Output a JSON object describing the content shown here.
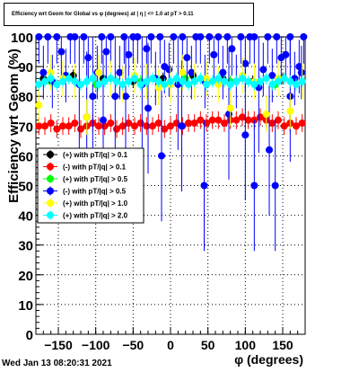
{
  "header": {
    "title": "Efficiency wrt Geom for Global vs φ (degrees) at | η | <= 1.0 at pT > 0.11"
  },
  "footer": {
    "timestamp": "Wed Jan 13 08:20:31 2021"
  },
  "chart_data": {
    "type": "scatter",
    "title": "Efficiency wrt Geom for Global vs φ (degrees) at | η | <= 1.0 at pT > 0.11",
    "xlabel": "φ (degrees)",
    "ylabel": "Efficiency wrt Geom (%)",
    "xlim": [
      -180,
      180
    ],
    "ylim": [
      0,
      100
    ],
    "x_ticks": [
      -150,
      -100,
      -50,
      0,
      50,
      100,
      150
    ],
    "x_tick_labels": [
      "−150",
      "−100",
      "−50",
      "0",
      "50",
      "100",
      "150"
    ],
    "y_ticks": [
      0,
      10,
      20,
      30,
      40,
      50,
      60,
      70,
      80,
      90,
      100
    ],
    "y_tick_labels": [
      "0",
      "10",
      "20",
      "30",
      "40",
      "50",
      "60",
      "70",
      "80",
      "90",
      "100"
    ],
    "grid": true,
    "legend_position": "middle-left",
    "series": [
      {
        "name": "(+) with pT/|q| > 0.1",
        "color": "#000000",
        "x": [
          -170,
          -130,
          -90,
          -50,
          -10,
          30,
          70,
          110,
          150
        ],
        "y": [
          86,
          87,
          86,
          85,
          86,
          87,
          86,
          85,
          86
        ]
      },
      {
        "name": "(-) with pT/|q| > 0.1",
        "color": "#ff0000",
        "x": [
          -176,
          -168,
          -160,
          -152,
          -144,
          -136,
          -128,
          -120,
          -112,
          -104,
          -96,
          -88,
          -80,
          -72,
          -64,
          -56,
          -48,
          -40,
          -32,
          -24,
          -16,
          -8,
          0,
          8,
          16,
          24,
          32,
          40,
          48,
          56,
          64,
          72,
          80,
          88,
          96,
          104,
          112,
          120,
          128,
          136,
          144,
          152,
          160,
          168,
          176
        ],
        "y": [
          70,
          70,
          71,
          69,
          70,
          70,
          71,
          69,
          70,
          71,
          70,
          70,
          71,
          69,
          70,
          71,
          70,
          71,
          70,
          70,
          71,
          69,
          70,
          71,
          70,
          71,
          71,
          72,
          71,
          72,
          72,
          71,
          72,
          72,
          73,
          72,
          72,
          73,
          72,
          71,
          72,
          70,
          71,
          70,
          71
        ]
      },
      {
        "name": "(+) with pT/|q| > 0.5",
        "color": "#00ff00",
        "x": [
          -160,
          -100,
          -40,
          20,
          80,
          140
        ],
        "y": [
          85,
          84,
          85,
          86,
          85,
          84
        ]
      },
      {
        "name": "(-) with pT/|q| > 0.5",
        "color": "#0000ff",
        "x": [
          -176,
          -170,
          -164,
          -158,
          -152,
          -146,
          -140,
          -134,
          -128,
          -122,
          -116,
          -110,
          -104,
          -98,
          -92,
          -86,
          -80,
          -74,
          -68,
          -62,
          -56,
          -50,
          -44,
          -38,
          -32,
          -26,
          -20,
          -14,
          -8,
          -2,
          4,
          10,
          16,
          22,
          28,
          34,
          40,
          46,
          52,
          58,
          64,
          70,
          76,
          82,
          88,
          94,
          100,
          106,
          112,
          118,
          124,
          130,
          136,
          142,
          148,
          154,
          160,
          166,
          172,
          178,
          -112,
          -90,
          -60,
          -30,
          -12,
          15,
          45,
          78,
          100,
          112,
          132,
          140,
          160,
          175
        ],
        "y": [
          100,
          88,
          100,
          85,
          100,
          95,
          87,
          100,
          100,
          84,
          100,
          93,
          80,
          88,
          100,
          95,
          100,
          80,
          88,
          100,
          94,
          100,
          100,
          84,
          96,
          100,
          86,
          100,
          90,
          89,
          100,
          84,
          100,
          93,
          88,
          100,
          100,
          85,
          100,
          94,
          100,
          88,
          100,
          96,
          85,
          100,
          91,
          100,
          100,
          83,
          89,
          100,
          87,
          100,
          93,
          94,
          100,
          86,
          90,
          100,
          73,
          72,
          80,
          76,
          60,
          70,
          50,
          74,
          67,
          50,
          62,
          50,
          80,
          88
        ]
      },
      {
        "name": "(+) with pT/|q| > 1.0",
        "color": "#ffff00",
        "x": [
          -176,
          -160,
          -144,
          -128,
          -112,
          -96,
          -80,
          -64,
          -48,
          -32,
          -16,
          0,
          16,
          32,
          48,
          64,
          80,
          96,
          112,
          128,
          144,
          160,
          176
        ],
        "y": [
          77,
          88,
          86,
          85,
          73,
          88,
          86,
          84,
          87,
          85,
          83,
          84,
          88,
          85,
          86,
          84,
          76,
          87,
          85,
          74,
          86,
          75,
          85
        ]
      },
      {
        "name": "(+) with pT/|q| > 2.0",
        "color": "#00ffff",
        "x": [
          -176,
          -168,
          -160,
          -152,
          -144,
          -136,
          -128,
          -120,
          -112,
          -104,
          -96,
          -88,
          -80,
          -72,
          -64,
          -56,
          -48,
          -40,
          -32,
          -24,
          -16,
          -8,
          0,
          8,
          16,
          24,
          32,
          40,
          48,
          56,
          64,
          72,
          80,
          88,
          96,
          104,
          112,
          120,
          128,
          136,
          144,
          152,
          160,
          168,
          176
        ],
        "y": [
          84,
          85,
          86,
          84,
          85,
          86,
          85,
          84,
          85,
          86,
          84,
          85,
          86,
          85,
          84,
          85,
          86,
          84,
          85,
          86,
          85,
          84,
          85,
          86,
          85,
          84,
          85,
          86,
          84,
          85,
          86,
          85,
          84,
          85,
          86,
          85,
          84,
          85,
          86,
          84,
          85,
          86,
          85,
          84,
          85
        ]
      }
    ]
  }
}
